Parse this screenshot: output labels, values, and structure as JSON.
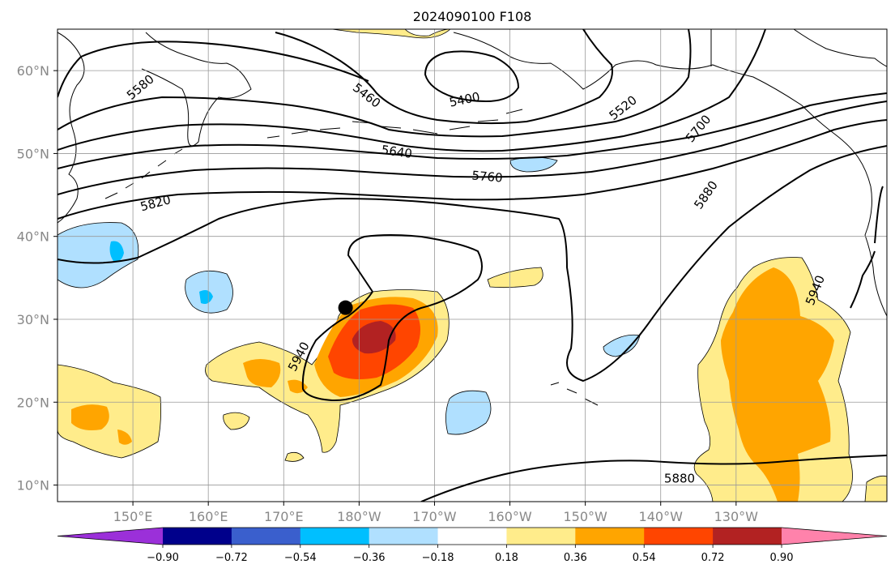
{
  "title": "2024090100 F108",
  "map": {
    "lon_range": [
      140,
      250
    ],
    "lat_range": [
      8,
      65
    ],
    "lat_ticks": [
      {
        "value": 10,
        "label": "10°N"
      },
      {
        "value": 20,
        "label": "20°N"
      },
      {
        "value": 30,
        "label": "30°N"
      },
      {
        "value": 40,
        "label": "40°N"
      },
      {
        "value": 50,
        "label": "50°N"
      },
      {
        "value": 60,
        "label": "60°N"
      }
    ],
    "lon_ticks": [
      {
        "value": 150,
        "label": "150°E"
      },
      {
        "value": 160,
        "label": "160°E"
      },
      {
        "value": 170,
        "label": "170°E"
      },
      {
        "value": 180,
        "label": "180°W"
      },
      {
        "value": 190,
        "label": "170°W"
      },
      {
        "value": 200,
        "label": "160°W"
      },
      {
        "value": 210,
        "label": "150°W"
      },
      {
        "value": 220,
        "label": "140°W"
      },
      {
        "value": 230,
        "label": "130°W"
      }
    ],
    "grid": true,
    "contour_labels": [
      {
        "text": "5580",
        "lon": 151,
        "lat": 58,
        "rot": -40
      },
      {
        "text": "5460",
        "lon": 181,
        "lat": 57,
        "rot": 38
      },
      {
        "text": "5400",
        "lon": 194,
        "lat": 56.5,
        "rot": -12
      },
      {
        "text": "5520",
        "lon": 215,
        "lat": 55.5,
        "rot": -38
      },
      {
        "text": "5700",
        "lon": 225,
        "lat": 53,
        "rot": -50
      },
      {
        "text": "5640",
        "lon": 185,
        "lat": 50.2,
        "rot": 8
      },
      {
        "text": "5760",
        "lon": 197,
        "lat": 47.2,
        "rot": 5
      },
      {
        "text": "5820",
        "lon": 153,
        "lat": 44,
        "rot": -15
      },
      {
        "text": "5880",
        "lon": 226,
        "lat": 45,
        "rot": -55
      },
      {
        "text": "5940",
        "lon": 172,
        "lat": 25.5,
        "rot": -62
      },
      {
        "text": "5940",
        "lon": 240.5,
        "lat": 33.5,
        "rot": -68
      },
      {
        "text": "5880",
        "lon": 222.5,
        "lat": 10.8,
        "rot": 0
      }
    ],
    "storm_center": {
      "lon": 178.2,
      "lat": 31.4
    }
  },
  "colorbar": {
    "colors": [
      "#9b30d9",
      "#00008b",
      "#3a5fcd",
      "#00bfff",
      "#b0e0ff",
      "#ffffff",
      "#ffec8b",
      "#ffa500",
      "#ff4500",
      "#b22222",
      "#ff82ab"
    ],
    "tick_labels": [
      "−0.90",
      "−0.72",
      "−0.54",
      "−0.36",
      "−0.18",
      "0.18",
      "0.36",
      "0.54",
      "0.72",
      "0.90"
    ]
  }
}
